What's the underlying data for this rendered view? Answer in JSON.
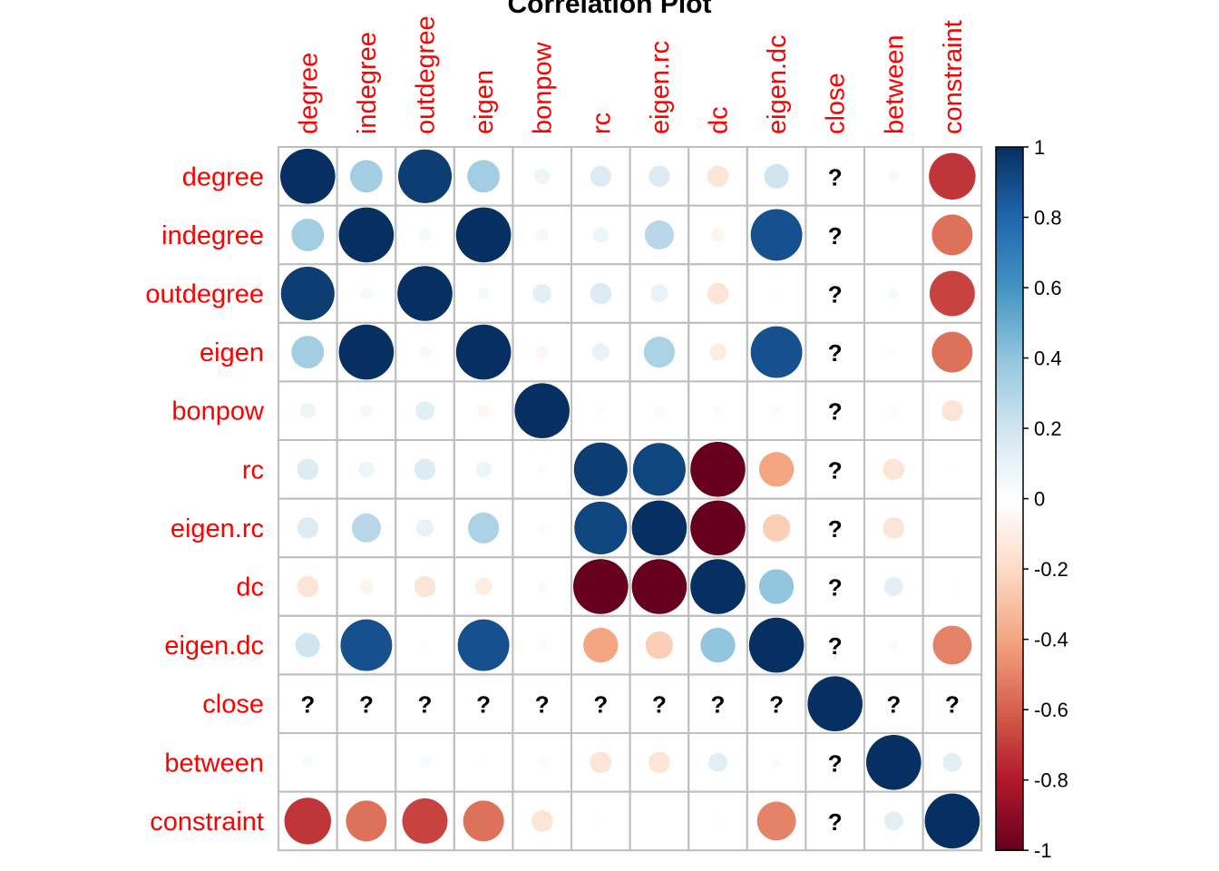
{
  "chart_data": {
    "type": "heatmap",
    "title": "Correlation Plot",
    "variables": [
      "degree",
      "indegree",
      "outdegree",
      "eigen",
      "bonpow",
      "rc",
      "eigen.rc",
      "dc",
      "eigen.dc",
      "close",
      "between",
      "constraint"
    ],
    "missing_marker": "?",
    "matrix": [
      [
        1,
        0.35,
        0.95,
        0.35,
        0.08,
        0.15,
        0.15,
        -0.15,
        0.2,
        null,
        0.04,
        -0.72
      ],
      [
        0.35,
        1,
        0.05,
        1,
        -0.05,
        0.08,
        0.28,
        -0.06,
        0.88,
        null,
        0,
        -0.55
      ],
      [
        0.95,
        0.05,
        1,
        0.05,
        0.12,
        0.15,
        0.1,
        -0.15,
        0.02,
        null,
        0.04,
        -0.68
      ],
      [
        0.35,
        1,
        0.05,
        1,
        -0.05,
        0.1,
        0.32,
        -0.1,
        0.88,
        null,
        -0.01,
        -0.55
      ],
      [
        0.08,
        -0.05,
        0.12,
        -0.05,
        1,
        -0.02,
        -0.03,
        0.03,
        -0.03,
        null,
        -0.03,
        -0.15
      ],
      [
        0.15,
        0.08,
        0.15,
        0.08,
        -0.02,
        0.95,
        0.92,
        -1,
        -0.4,
        null,
        -0.15,
        -0.01
      ],
      [
        0.15,
        0.28,
        0.1,
        0.32,
        -0.03,
        0.92,
        1,
        -1,
        -0.25,
        null,
        -0.15,
        0
      ],
      [
        -0.15,
        -0.06,
        -0.15,
        -0.1,
        0.03,
        -1,
        -1,
        1,
        0.4,
        null,
        0.12,
        -0.01
      ],
      [
        0.2,
        0.88,
        0.02,
        0.88,
        -0.03,
        -0.4,
        -0.25,
        0.4,
        1,
        null,
        0.03,
        -0.5
      ],
      [
        null,
        null,
        null,
        null,
        null,
        null,
        null,
        null,
        null,
        1,
        null,
        null
      ],
      [
        0.04,
        0,
        0.04,
        -0.01,
        -0.03,
        -0.15,
        -0.15,
        0.12,
        0.03,
        null,
        1,
        0.12
      ],
      [
        -0.72,
        -0.55,
        -0.68,
        -0.55,
        -0.15,
        -0.01,
        0,
        -0.01,
        -0.5,
        null,
        0.12,
        1
      ]
    ],
    "colorbar": {
      "min": -1,
      "max": 1,
      "ticks": [
        "1",
        "0.8",
        "0.6",
        "0.4",
        "0.2",
        "0",
        "-0.2",
        "-0.4",
        "-0.6",
        "-0.8",
        "-1"
      ]
    },
    "colors": {
      "label": "#ff0000",
      "grid": "#bebebe",
      "palette": [
        "#67001f",
        "#b2182b",
        "#d6604d",
        "#f4a582",
        "#fddbc7",
        "#ffffff",
        "#d1e5f0",
        "#92c5de",
        "#4393c3",
        "#2166ac",
        "#053061"
      ]
    }
  }
}
